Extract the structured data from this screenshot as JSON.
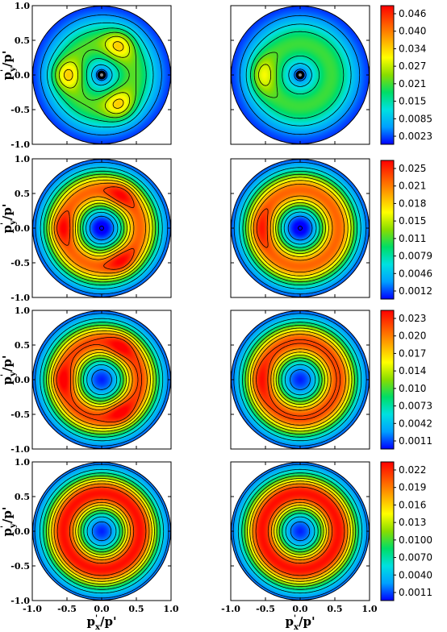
{
  "chart_data": {
    "type": "heatmap",
    "description_of_layout": "4 rows x 2 columns of polar contour maps with one colorbar per row",
    "x_axis": {
      "label_base": "p",
      "label_sup": "'",
      "label_sub": "x",
      "label_tail": "/p'",
      "ticks": [
        "-1.0",
        "-0.5",
        "0.0",
        "0.5",
        "1.0"
      ],
      "range": [
        -1.0,
        1.0
      ]
    },
    "y_axis": {
      "label_base": "p",
      "label_sup": "'",
      "label_sub": "y",
      "label_tail": "/p'",
      "ticks": [
        "1.0",
        "0.5",
        "0.0",
        "-0.5",
        "-1.0"
      ],
      "range": [
        -1.0,
        1.0
      ]
    },
    "colormap": [
      "#0000ff",
      "#00a0ff",
      "#00e0e0",
      "#00dd66",
      "#88dd00",
      "#ffff00",
      "#ffaa00",
      "#ff5500",
      "#ff0000"
    ],
    "rows": [
      {
        "colorbar_ticks": [
          "0.046",
          "0.040",
          "0.034",
          "0.027",
          "0.021",
          "0.015",
          "0.0085",
          "0.0023"
        ],
        "range": [
          0.0023,
          0.049
        ],
        "panels": [
          {
            "pattern": "three-lobe",
            "lobe_radius": 0.5,
            "lobe_amplitude": 0.012,
            "lobe_width": 0.15,
            "ring_radius": 0.45,
            "ring_width": 0.35,
            "ring_amplitude": 0.021,
            "center_hole": 0.05
          },
          {
            "pattern": "crescent-left",
            "lobe_radius": 0.55,
            "lobe_amplitude": 0.01,
            "lobe_width": 0.35,
            "ring_radius": 0.45,
            "ring_width": 0.35,
            "ring_amplitude": 0.02,
            "center_hole": 0.05
          }
        ]
      },
      {
        "colorbar_ticks": [
          "0.025",
          "0.021",
          "0.018",
          "0.015",
          "0.011",
          "0.0079",
          "0.0046",
          "0.0012"
        ],
        "range": [
          0.0012,
          0.027
        ],
        "panels": [
          {
            "pattern": "three-lobe",
            "lobe_radius": 0.55,
            "lobe_amplitude": 0.004,
            "lobe_width": 0.15,
            "ring_radius": 0.55,
            "ring_width": 0.28,
            "ring_amplitude": 0.022,
            "center_hole": 0.1
          },
          {
            "pattern": "crescent-left",
            "lobe_radius": 0.55,
            "lobe_amplitude": 0.003,
            "lobe_width": 0.35,
            "ring_radius": 0.55,
            "ring_width": 0.28,
            "ring_amplitude": 0.022,
            "center_hole": 0.1
          }
        ]
      },
      {
        "colorbar_ticks": [
          "0.023",
          "0.020",
          "0.017",
          "0.014",
          "0.010",
          "0.0073",
          "0.0042",
          "0.0011"
        ],
        "range": [
          0.0011,
          0.0245
        ],
        "panels": [
          {
            "pattern": "three-lobe",
            "lobe_radius": 0.55,
            "lobe_amplitude": 0.003,
            "lobe_width": 0.15,
            "ring_radius": 0.55,
            "ring_width": 0.28,
            "ring_amplitude": 0.021,
            "center_hole": 0.0
          },
          {
            "pattern": "crescent-left",
            "lobe_radius": 0.55,
            "lobe_amplitude": 0.002,
            "lobe_width": 0.35,
            "ring_radius": 0.55,
            "ring_width": 0.28,
            "ring_amplitude": 0.021,
            "center_hole": 0.0
          }
        ]
      },
      {
        "colorbar_ticks": [
          "0.022",
          "0.019",
          "0.016",
          "0.013",
          "0.0100",
          "0.0070",
          "0.0040",
          "0.0011"
        ],
        "range": [
          0.0011,
          0.0235
        ],
        "panels": [
          {
            "pattern": "ring",
            "lobe_radius": 0.55,
            "lobe_amplitude": 0.0,
            "lobe_width": 0.15,
            "ring_radius": 0.55,
            "ring_width": 0.28,
            "ring_amplitude": 0.022,
            "center_hole": 0.0
          },
          {
            "pattern": "ring",
            "lobe_radius": 0.55,
            "lobe_amplitude": 0.0,
            "lobe_width": 0.15,
            "ring_radius": 0.55,
            "ring_width": 0.28,
            "ring_amplitude": 0.022,
            "center_hole": 0.0
          }
        ]
      }
    ]
  }
}
